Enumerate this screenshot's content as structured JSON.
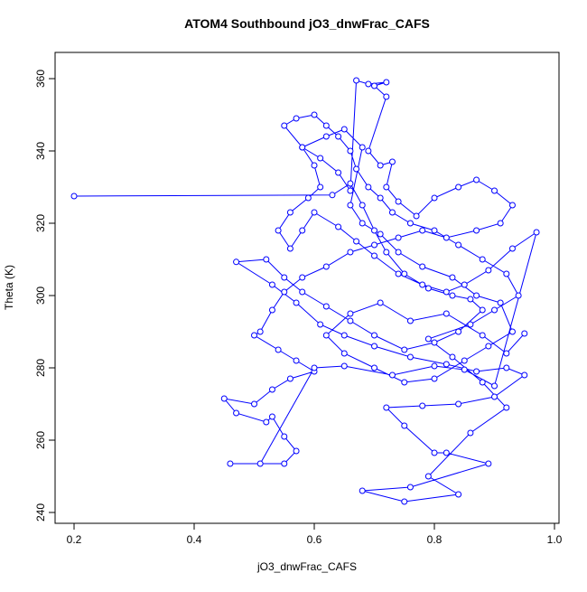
{
  "chart_data": {
    "type": "line",
    "title": "ATOM4 Southbound jO3_dnwFrac_CAFS",
    "xlabel": "jO3_dnwFrac_CAFS",
    "ylabel": "Theta (K)",
    "color": "#0000ff",
    "markers": true,
    "xlim": [
      0.1684,
      1.0075
    ],
    "ylim": [
      237,
      367.25
    ],
    "xticks": [
      0.2,
      0.4,
      0.6,
      0.8,
      {
        "value": 1,
        "label": "1.0"
      }
    ],
    "yticks": [
      240,
      260,
      280,
      300,
      320,
      340,
      360
    ],
    "x": [
      0.2,
      0.63,
      0.66,
      0.68,
      0.7,
      0.72,
      0.75,
      0.79,
      0.83,
      0.86,
      0.88,
      0.84,
      0.8,
      0.75,
      0.7,
      0.66,
      0.62,
      0.58,
      0.55,
      0.52,
      0.47,
      0.53,
      0.57,
      0.61,
      0.65,
      0.7,
      0.76,
      0.82,
      0.87,
      0.92,
      0.95,
      0.9,
      0.84,
      0.78,
      0.72,
      0.75,
      0.8,
      0.82,
      0.89,
      0.76,
      0.68,
      0.75,
      0.84,
      0.79,
      0.86,
      0.92,
      0.88,
      0.83,
      0.79,
      0.86,
      0.9,
      0.94,
      0.92,
      0.88,
      0.84,
      0.8,
      0.76,
      0.73,
      0.71,
      0.69,
      0.67,
      0.66,
      0.64,
      0.62,
      0.6,
      0.57,
      0.55,
      0.58,
      0.61,
      0.64,
      0.66,
      0.67,
      0.69,
      0.72,
      0.7,
      0.72,
      0.69,
      0.71,
      0.73,
      0.72,
      0.74,
      0.77,
      0.8,
      0.84,
      0.87,
      0.9,
      0.93,
      0.91,
      0.87,
      0.82,
      0.78,
      0.74,
      0.7,
      0.66,
      0.62,
      0.58,
      0.55,
      0.53,
      0.51,
      0.5,
      0.54,
      0.57,
      0.6,
      0.56,
      0.53,
      0.5,
      0.45,
      0.47,
      0.52,
      0.53,
      0.55,
      0.57,
      0.55,
      0.46,
      0.51,
      0.6,
      0.65,
      0.73,
      0.8,
      0.85,
      0.9,
      0.97,
      0.93,
      0.89,
      0.85,
      0.82,
      0.78,
      0.74,
      0.7,
      0.67,
      0.64,
      0.6,
      0.58,
      0.56,
      0.54,
      0.56,
      0.59,
      0.61,
      0.6,
      0.58,
      0.62,
      0.65,
      0.68,
      0.66,
      0.68,
      0.71,
      0.74,
      0.78,
      0.83,
      0.87,
      0.91,
      0.93,
      0.89,
      0.85,
      0.8,
      0.75,
      0.7,
      0.65,
      0.62,
      0.66,
      0.71,
      0.76,
      0.82,
      0.88,
      0.92,
      0.95
    ],
    "values": [
      327.5,
      327.8,
      331,
      325,
      318,
      312,
      306,
      302,
      300,
      299,
      296,
      290,
      287,
      285,
      289,
      293,
      297,
      301,
      305,
      310,
      309.3,
      303,
      298,
      292,
      289,
      286,
      283,
      281,
      279,
      280,
      278,
      272,
      270,
      269.5,
      269,
      264,
      256.5,
      256.5,
      253.5,
      247,
      246,
      243,
      245,
      250,
      262,
      269,
      276,
      283,
      288,
      292,
      296,
      300,
      306,
      310,
      314,
      318,
      320,
      323,
      327,
      330,
      335,
      340,
      344,
      347,
      350,
      349,
      347,
      341,
      338,
      334,
      329,
      359.5,
      358.5,
      359,
      358,
      355,
      340,
      336,
      337,
      330,
      326,
      322,
      327,
      330,
      332,
      329,
      325,
      320,
      318,
      316,
      318,
      316,
      314,
      312,
      308,
      305,
      301,
      296,
      290,
      289,
      285,
      282,
      279,
      277,
      274,
      270,
      271.5,
      267.5,
      265,
      266.5,
      261,
      257,
      253.5,
      253.5,
      253.5,
      280,
      280.5,
      278,
      280.5,
      279.5,
      275,
      317.5,
      313,
      307,
      303,
      301,
      303,
      306,
      311,
      315,
      319,
      323,
      318,
      313,
      318,
      323,
      327,
      330,
      336,
      341,
      344,
      346,
      341,
      325,
      320,
      317,
      312,
      308,
      305,
      300,
      298,
      290,
      286,
      282,
      277,
      276,
      280,
      284,
      289,
      295,
      298,
      293,
      295,
      289,
      284,
      289.5
    ]
  }
}
